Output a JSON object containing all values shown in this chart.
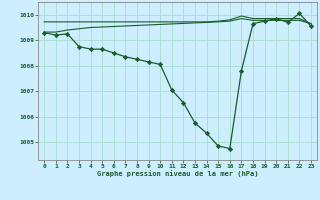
{
  "background_color": "#cceeff",
  "grid_color": "#aaddcc",
  "line_color": "#1a5c2a",
  "marker_color": "#1a5c2a",
  "xlabel": "Graphe pression niveau de la mer (hPa)",
  "xlim": [
    -0.5,
    23.5
  ],
  "ylim": [
    1004.3,
    1010.5
  ],
  "yticks": [
    1005,
    1006,
    1007,
    1008,
    1009,
    1010
  ],
  "xticks": [
    0,
    1,
    2,
    3,
    4,
    5,
    6,
    7,
    8,
    9,
    10,
    11,
    12,
    13,
    14,
    15,
    16,
    17,
    18,
    19,
    20,
    21,
    22,
    23
  ],
  "series_main": {
    "x": [
      0,
      1,
      2,
      3,
      4,
      5,
      6,
      7,
      8,
      9,
      10,
      11,
      12,
      13,
      14,
      15,
      16,
      17,
      18,
      19,
      20,
      21,
      22,
      23
    ],
    "y": [
      1009.3,
      1009.2,
      1009.25,
      1008.75,
      1008.65,
      1008.65,
      1008.5,
      1008.35,
      1008.25,
      1008.15,
      1008.05,
      1007.05,
      1006.55,
      1005.75,
      1005.35,
      1004.85,
      1004.75,
      1007.8,
      1009.65,
      1009.75,
      1009.85,
      1009.7,
      1010.05,
      1009.55
    ]
  },
  "series_upper_flat": {
    "x": [
      0,
      1,
      2,
      3,
      4,
      5,
      6,
      7,
      8,
      9,
      10,
      11,
      12,
      13,
      14,
      15,
      16,
      17,
      18,
      19,
      20,
      21,
      22,
      23
    ],
    "y": [
      1009.72,
      1009.72,
      1009.72,
      1009.72,
      1009.72,
      1009.72,
      1009.72,
      1009.72,
      1009.72,
      1009.72,
      1009.72,
      1009.72,
      1009.72,
      1009.72,
      1009.72,
      1009.75,
      1009.8,
      1009.95,
      1009.85,
      1009.85,
      1009.85,
      1009.85,
      1009.85,
      1009.65
    ]
  },
  "series_middle": {
    "x": [
      0,
      1,
      2,
      3,
      4,
      5,
      6,
      7,
      8,
      9,
      10,
      11,
      12,
      13,
      14,
      15,
      16,
      17,
      18,
      19,
      20,
      21,
      22,
      23
    ],
    "y": [
      1009.32,
      1009.32,
      1009.4,
      1009.45,
      1009.5,
      1009.52,
      1009.54,
      1009.56,
      1009.58,
      1009.6,
      1009.62,
      1009.64,
      1009.66,
      1009.68,
      1009.7,
      1009.72,
      1009.75,
      1009.85,
      1009.78,
      1009.78,
      1009.78,
      1009.78,
      1009.78,
      1009.65
    ]
  }
}
